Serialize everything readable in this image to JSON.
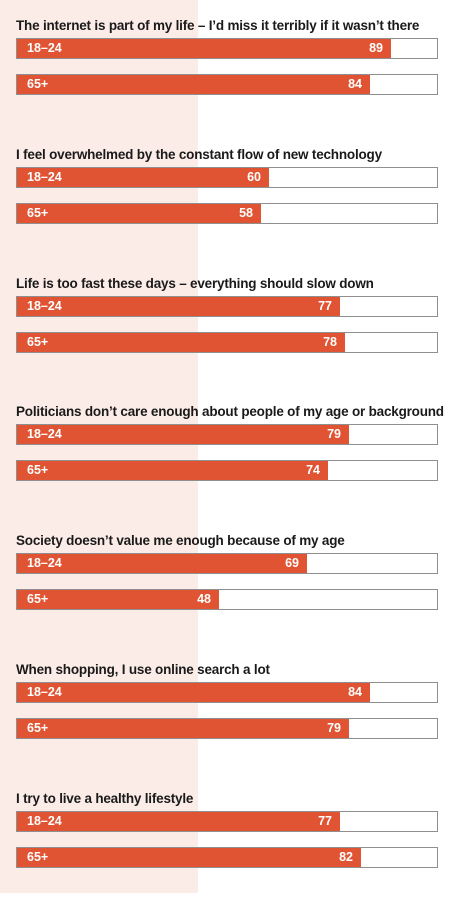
{
  "chart_data": {
    "type": "bar",
    "orientation": "horizontal",
    "xlim": [
      0,
      100
    ],
    "colors": {
      "bar": "#e05433",
      "band": "#fbece7",
      "track_border": "#8f8f8f"
    },
    "groups": [
      {
        "title": "The internet is part of my life – I’d miss it terribly if it wasn’t there",
        "bars": [
          {
            "label": "18–24",
            "value": 89
          },
          {
            "label": "65+",
            "value": 84
          }
        ]
      },
      {
        "title": "I feel overwhelmed by the constant flow of new technology",
        "bars": [
          {
            "label": "18–24",
            "value": 60
          },
          {
            "label": "65+",
            "value": 58
          }
        ]
      },
      {
        "title": "Life is too fast these days – everything should slow down",
        "bars": [
          {
            "label": "18–24",
            "value": 77
          },
          {
            "label": "65+",
            "value": 78
          }
        ]
      },
      {
        "title": "Politicians don’t care enough about people of my age or background",
        "bars": [
          {
            "label": "18–24",
            "value": 79
          },
          {
            "label": "65+",
            "value": 74
          }
        ]
      },
      {
        "title": "Society doesn’t value me enough because of my age",
        "bars": [
          {
            "label": "18–24",
            "value": 69
          },
          {
            "label": "65+",
            "value": 48
          }
        ]
      },
      {
        "title": "When shopping, I use online search a lot",
        "bars": [
          {
            "label": "18–24",
            "value": 84
          },
          {
            "label": "65+",
            "value": 79
          }
        ]
      },
      {
        "title": "I try to live a healthy lifestyle",
        "bars": [
          {
            "label": "18–24",
            "value": 77
          },
          {
            "label": "65+",
            "value": 82
          }
        ]
      }
    ]
  }
}
